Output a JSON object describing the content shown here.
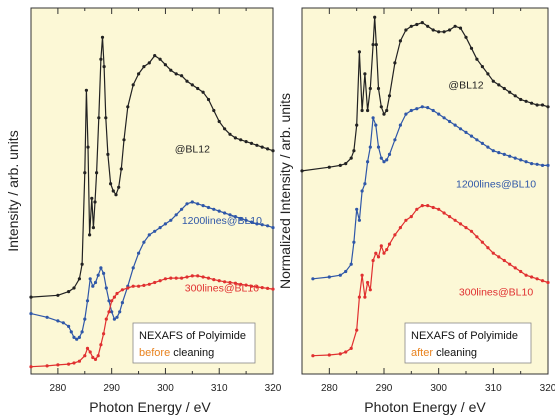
{
  "chart_data": [
    {
      "type": "line",
      "ylabel": "Intensity / arb. units",
      "xlabel": "Photon Energy / eV",
      "xlim": [
        275,
        320
      ],
      "xticks": [
        "280",
        "290",
        "300",
        "310",
        "320"
      ],
      "background": "#fcf8d6",
      "annotation_box": {
        "line1": "NEXAFS of Polyimide",
        "line2_highlight": "before",
        "line2_rest": " cleaning",
        "highlight_color": "#e8821e"
      },
      "series": [
        {
          "name": "@BL12",
          "color": "#222222",
          "label_x": 305,
          "label_y": 0.605,
          "x": [
            275,
            280,
            282,
            283,
            284,
            284.5,
            285,
            285.3,
            285.6,
            285.9,
            286.3,
            286.6,
            286.9,
            287.2,
            287.6,
            288,
            288.3,
            288.6,
            288.9,
            289.3,
            289.8,
            290.3,
            290.8,
            291.3,
            291.8,
            292.3,
            293,
            294,
            295,
            296,
            297,
            298,
            299,
            300,
            301,
            302,
            303,
            304,
            305,
            306,
            307,
            308,
            309,
            310,
            311,
            312,
            313,
            314,
            315,
            316,
            317,
            318,
            319,
            320
          ],
          "y": [
            0.21,
            0.215,
            0.225,
            0.235,
            0.26,
            0.3,
            0.55,
            0.775,
            0.62,
            0.38,
            0.48,
            0.4,
            0.47,
            0.55,
            0.7,
            0.86,
            0.92,
            0.84,
            0.7,
            0.6,
            0.52,
            0.5,
            0.49,
            0.51,
            0.56,
            0.64,
            0.73,
            0.79,
            0.82,
            0.84,
            0.85,
            0.87,
            0.86,
            0.845,
            0.83,
            0.82,
            0.815,
            0.8,
            0.79,
            0.78,
            0.77,
            0.75,
            0.72,
            0.69,
            0.67,
            0.655,
            0.645,
            0.64,
            0.635,
            0.63,
            0.625,
            0.62,
            0.615,
            0.61
          ]
        },
        {
          "name": "1200lines@BL10",
          "color": "#2f57a8",
          "label_x": 310.5,
          "label_y": 0.41,
          "x": [
            275,
            278,
            280,
            281,
            282,
            282.5,
            283,
            283.5,
            284,
            284.5,
            285,
            285.5,
            286,
            286.5,
            287,
            287.5,
            288,
            288.5,
            289,
            289.5,
            290,
            290.5,
            291,
            291.5,
            292,
            293,
            294,
            295,
            296,
            297,
            298,
            299,
            300,
            301,
            302,
            303,
            304,
            305,
            306,
            307,
            308,
            309,
            310,
            311,
            312,
            313,
            314,
            315,
            316,
            317,
            318,
            319,
            320
          ],
          "y": [
            0.165,
            0.155,
            0.145,
            0.14,
            0.13,
            0.115,
            0.1,
            0.095,
            0.1,
            0.115,
            0.15,
            0.2,
            0.26,
            0.24,
            0.25,
            0.27,
            0.29,
            0.275,
            0.235,
            0.2,
            0.17,
            0.15,
            0.155,
            0.17,
            0.195,
            0.24,
            0.29,
            0.33,
            0.36,
            0.38,
            0.39,
            0.4,
            0.41,
            0.42,
            0.435,
            0.45,
            0.465,
            0.47,
            0.465,
            0.46,
            0.455,
            0.45,
            0.445,
            0.44,
            0.435,
            0.43,
            0.425,
            0.42,
            0.415,
            0.41,
            0.408,
            0.405,
            0.4
          ]
        },
        {
          "name": "300lines@BL10",
          "color": "#e03030",
          "label_x": 310.5,
          "label_y": 0.225,
          "x": [
            275,
            278,
            280,
            282,
            283,
            284,
            285,
            285.5,
            286,
            286.5,
            287,
            287.5,
            288,
            288.5,
            289,
            289.5,
            290,
            290.5,
            291,
            292,
            293,
            294,
            295,
            296,
            297,
            298,
            299,
            300,
            301,
            302,
            303,
            304,
            305,
            306,
            307,
            308,
            309,
            310,
            311,
            312,
            313,
            314,
            315,
            316,
            317,
            318,
            319,
            320
          ],
          "y": [
            0.02,
            0.022,
            0.025,
            0.027,
            0.03,
            0.035,
            0.05,
            0.07,
            0.06,
            0.045,
            0.04,
            0.05,
            0.08,
            0.11,
            0.15,
            0.17,
            0.2,
            0.21,
            0.22,
            0.23,
            0.235,
            0.24,
            0.24,
            0.242,
            0.245,
            0.25,
            0.255,
            0.26,
            0.262,
            0.262,
            0.262,
            0.265,
            0.268,
            0.268,
            0.265,
            0.262,
            0.258,
            0.255,
            0.252,
            0.25,
            0.248,
            0.245,
            0.243,
            0.24,
            0.238,
            0.236,
            0.234,
            0.232
          ]
        }
      ]
    },
    {
      "type": "line",
      "ylabel": "Normalized Intensity / arb. units",
      "xlabel": "Photon Energy / eV",
      "xlim": [
        275,
        320
      ],
      "xticks": [
        "280",
        "290",
        "300",
        "310",
        "320"
      ],
      "background": "#fcf8d6",
      "annotation_box": {
        "line1": "NEXAFS of Polyimide",
        "line2_highlight": "after",
        "line2_rest": " cleaning",
        "highlight_color": "#e8821e"
      },
      "series": [
        {
          "name": "@BL12",
          "color": "#222222",
          "label_x": 305,
          "label_y": 0.78,
          "x": [
            275,
            280,
            282,
            283,
            284,
            284.5,
            285,
            285.5,
            286,
            286.5,
            287,
            287.5,
            288,
            288.3,
            288.6,
            289,
            289.5,
            290,
            290.5,
            291,
            292,
            293,
            294,
            295,
            296,
            297,
            298,
            299,
            300,
            301,
            302,
            303,
            304,
            305,
            306,
            307,
            308,
            309,
            310,
            311,
            312,
            313,
            314,
            315,
            316,
            317,
            318,
            319,
            320
          ],
          "y": [
            0.555,
            0.565,
            0.57,
            0.575,
            0.59,
            0.61,
            0.68,
            0.88,
            0.72,
            0.82,
            0.72,
            0.78,
            0.9,
            0.975,
            0.9,
            0.78,
            0.73,
            0.71,
            0.72,
            0.76,
            0.85,
            0.91,
            0.94,
            0.95,
            0.955,
            0.96,
            0.95,
            0.94,
            0.935,
            0.935,
            0.94,
            0.95,
            0.945,
            0.92,
            0.89,
            0.86,
            0.84,
            0.82,
            0.8,
            0.79,
            0.78,
            0.77,
            0.76,
            0.75,
            0.745,
            0.74,
            0.735,
            0.735,
            0.73
          ]
        },
        {
          "name": "1200lines@BL10",
          "color": "#2f57a8",
          "label_x": 310.5,
          "label_y": 0.51,
          "x": [
            277,
            280,
            282,
            283,
            284,
            284.5,
            285,
            285.5,
            286,
            286.5,
            287,
            287.5,
            288,
            288.5,
            289,
            289.5,
            290,
            290.5,
            291,
            292,
            293,
            294,
            295,
            296,
            297,
            298,
            299,
            300,
            301,
            302,
            303,
            304,
            305,
            306,
            307,
            308,
            309,
            310,
            311,
            312,
            313,
            314,
            315,
            316,
            317,
            318,
            319,
            320
          ],
          "y": [
            0.26,
            0.265,
            0.27,
            0.28,
            0.3,
            0.36,
            0.45,
            0.42,
            0.5,
            0.52,
            0.58,
            0.62,
            0.7,
            0.68,
            0.62,
            0.59,
            0.58,
            0.585,
            0.6,
            0.64,
            0.68,
            0.71,
            0.72,
            0.725,
            0.73,
            0.728,
            0.72,
            0.71,
            0.7,
            0.69,
            0.68,
            0.67,
            0.66,
            0.65,
            0.64,
            0.63,
            0.62,
            0.61,
            0.605,
            0.6,
            0.595,
            0.59,
            0.585,
            0.58,
            0.575,
            0.573,
            0.57,
            0.57
          ]
        },
        {
          "name": "300lines@BL10",
          "color": "#e03030",
          "label_x": 310.5,
          "label_y": 0.215,
          "x": [
            277,
            280,
            282,
            283,
            284,
            285,
            285.5,
            286,
            286.5,
            287,
            287.5,
            288,
            288.5,
            289,
            289.5,
            290,
            290.5,
            291,
            292,
            293,
            294,
            295,
            296,
            297,
            298,
            299,
            300,
            301,
            302,
            303,
            304,
            305,
            306,
            307,
            308,
            309,
            310,
            311,
            312,
            313,
            314,
            315,
            316,
            317,
            318,
            319,
            320
          ],
          "y": [
            0.05,
            0.052,
            0.055,
            0.06,
            0.07,
            0.12,
            0.21,
            0.27,
            0.21,
            0.25,
            0.23,
            0.31,
            0.33,
            0.32,
            0.35,
            0.33,
            0.34,
            0.355,
            0.38,
            0.4,
            0.42,
            0.43,
            0.45,
            0.46,
            0.46,
            0.455,
            0.45,
            0.44,
            0.43,
            0.42,
            0.41,
            0.4,
            0.39,
            0.375,
            0.36,
            0.345,
            0.33,
            0.32,
            0.31,
            0.3,
            0.29,
            0.28,
            0.27,
            0.265,
            0.26,
            0.255,
            0.25
          ]
        }
      ]
    }
  ]
}
